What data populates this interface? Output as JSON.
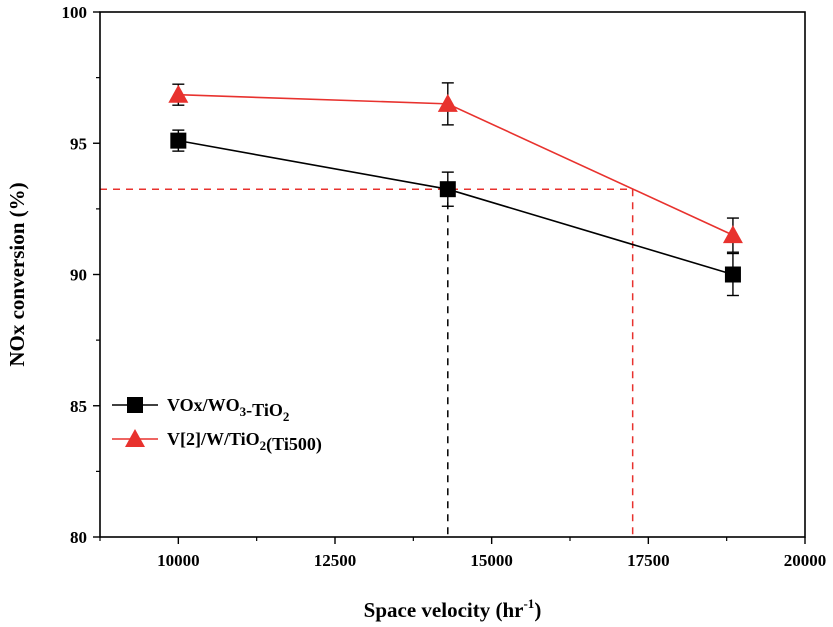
{
  "chart_data": {
    "type": "line",
    "title": "",
    "xlabel": "Space velocity (hr",
    "xlabel_sup": "-1",
    "xlabel_end": ")",
    "ylabel": "NOx conversion (%)",
    "xlim": [
      8750,
      20000
    ],
    "ylim": [
      80,
      100
    ],
    "x_ticks": [
      10000,
      12500,
      15000,
      17500,
      20000
    ],
    "x_tick_labels": [
      "10000",
      "12500",
      "15000",
      "17500",
      "20000"
    ],
    "y_ticks": [
      80,
      85,
      90,
      95,
      100
    ],
    "y_tick_labels": [
      "80",
      "85",
      "90",
      "95",
      "100"
    ],
    "legend_position": "lower-left",
    "series": [
      {
        "name": "VOx/WO3-TiO2",
        "legend_parts": [
          {
            "t": "VOx/WO",
            "s": ""
          },
          {
            "t": "3",
            "s": "sub"
          },
          {
            "t": "-TiO",
            "s": ""
          },
          {
            "t": "2",
            "s": "sub"
          }
        ],
        "color": "#000000",
        "marker": "square",
        "x": [
          10000,
          14300,
          18850
        ],
        "y": [
          95.1,
          93.25,
          90.0
        ],
        "err": [
          0.4,
          0.65,
          0.8
        ]
      },
      {
        "name": "V[2]/W/TiO2(Ti500)",
        "legend_parts": [
          {
            "t": "V[2]/W/TiO",
            "s": ""
          },
          {
            "t": "2",
            "s": "sub"
          },
          {
            "t": "(Ti500)",
            "s": ""
          }
        ],
        "color": "#e8322e",
        "marker": "triangle",
        "x": [
          10000,
          14300,
          18850
        ],
        "y": [
          96.85,
          96.5,
          91.5
        ],
        "err": [
          0.4,
          0.8,
          0.65
        ]
      }
    ],
    "reference_lines": [
      {
        "color": "#000000",
        "x": 14300,
        "y": 93.25
      },
      {
        "color": "#e8322e",
        "x": 17250,
        "y": 93.25
      }
    ]
  }
}
